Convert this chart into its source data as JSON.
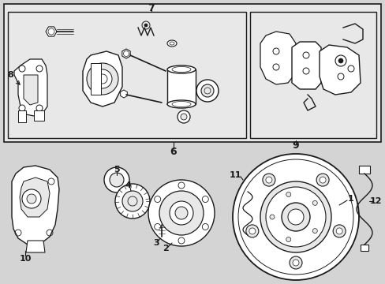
{
  "bg_color": "#d4d4d4",
  "line_color": "#1a1a1a",
  "box_fill": "#e8e8e8",
  "white_fill": "#ffffff",
  "figsize": [
    4.89,
    3.6
  ],
  "dpi": 100,
  "font_size": 8,
  "font_size_sm": 7
}
